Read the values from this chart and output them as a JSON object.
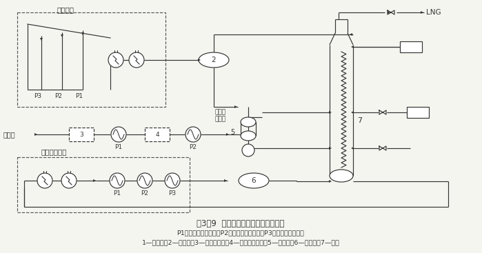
{
  "title": "图3－9  丙烷预冷混合冷剂液化流程图",
  "subtitle1": "P1－高压丙烷蒸发器；P2－中压丙烷蒸发器；P3－低压丙烷蒸发器",
  "subtitle2": "1—冷却器；2—储集罐；3—预处理单元；4—气体干燥单元；5—分馏塔；6—分离器；7—冷箱",
  "bg_color": "#f5f5f0",
  "line_color": "#333333",
  "dashed_color": "#555555",
  "label_propane": "丙烷系统",
  "label_mixed": "混合冷剂系统",
  "label_feed": "原料气",
  "label_to_evap": "去丙烷\n蒸发器",
  "label_LNG": "LNG",
  "label_2": "2",
  "label_3": "3",
  "label_4": "4",
  "label_5": "5",
  "label_6": "6",
  "label_7": "7"
}
